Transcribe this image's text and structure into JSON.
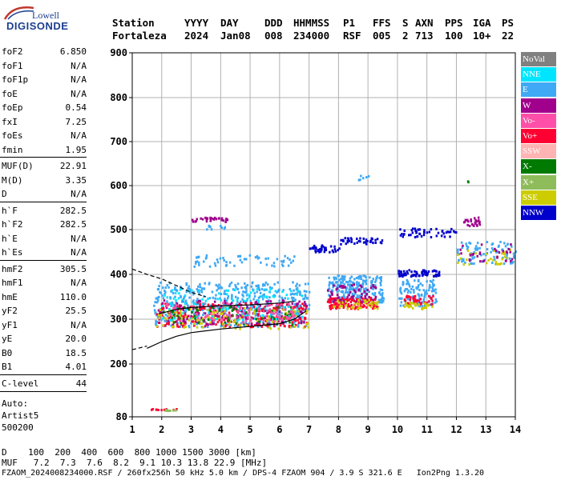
{
  "logo": {
    "top": "Lowell",
    "main": "DIGISONDE"
  },
  "header": {
    "labels": [
      "Station",
      "YYYY",
      "DAY",
      "DDD",
      "HHMMSS",
      "P1",
      "FFS",
      "S",
      "AXN",
      "PPS",
      "IGA",
      "PS"
    ],
    "values": [
      "Fortaleza",
      "2024",
      "Jan08",
      "008",
      "234000",
      "RSF",
      "005",
      "2",
      "713",
      "100",
      "10+",
      "22"
    ]
  },
  "params": {
    "group1": [
      {
        "label": "foF2",
        "value": "6.850"
      },
      {
        "label": "foF1",
        "value": "N/A"
      },
      {
        "label": "foF1p",
        "value": "N/A"
      },
      {
        "label": "foE",
        "value": "N/A"
      },
      {
        "label": "foEp",
        "value": "0.54"
      },
      {
        "label": "fxI",
        "value": "7.25"
      },
      {
        "label": "foEs",
        "value": "N/A"
      },
      {
        "label": "fmin",
        "value": "1.95"
      }
    ],
    "group2": [
      {
        "label": "MUF(D)",
        "value": "22.91"
      },
      {
        "label": "M(D)",
        "value": "3.35"
      },
      {
        "label": "D",
        "value": "N/A"
      }
    ],
    "group3": [
      {
        "label": "h`F",
        "value": "282.5"
      },
      {
        "label": "h`F2",
        "value": "282.5"
      },
      {
        "label": "h`E",
        "value": "N/A"
      },
      {
        "label": "h`Es",
        "value": "N/A"
      }
    ],
    "group4": [
      {
        "label": "hmF2",
        "value": "305.5"
      },
      {
        "label": "hmF1",
        "value": "N/A"
      },
      {
        "label": "hmE",
        "value": "110.0"
      },
      {
        "label": "yF2",
        "value": "25.5"
      },
      {
        "label": "yF1",
        "value": "N/A"
      },
      {
        "label": "yE",
        "value": "20.0"
      },
      {
        "label": "B0",
        "value": "18.5"
      },
      {
        "label": "B1",
        "value": "4.01"
      }
    ],
    "group5": [
      {
        "label": "C-level",
        "value": "44"
      }
    ]
  },
  "auto": [
    "Auto:",
    "Artist5",
    "500200"
  ],
  "legend": [
    {
      "label": "NoVal",
      "color": "#808080"
    },
    {
      "label": "NNE",
      "color": "#00e5ff"
    },
    {
      "label": "E",
      "color": "#3fa9f5"
    },
    {
      "label": "W",
      "color": "#a0008c"
    },
    {
      "label": "Vo-",
      "color": "#ff4fa8"
    },
    {
      "label": "Vo+",
      "color": "#ff0033"
    },
    {
      "label": "SSW",
      "color": "#ffb3b3"
    },
    {
      "label": "X-",
      "color": "#007a00"
    },
    {
      "label": "X+",
      "color": "#8fbc5a"
    },
    {
      "label": "SSE",
      "color": "#cccc00"
    },
    {
      "label": "NNW",
      "color": "#0000cc"
    }
  ],
  "bottom": {
    "d_line": "D    100  200  400  600  800 1000 1500 3000 [km]",
    "muf_line": "MUF   7.2  7.3  7.6  8.2  9.1 10.3 13.8 22.9 [MHz]",
    "file_line": "FZAOM_2024008234000.RSF / 260fx256h 50 kHz 5.0 km / DPS-4 FZAOM 904 / 3.9 S 321.6 E   Ion2Png 1.3.20"
  },
  "chart_data": {
    "type": "scatter",
    "x_ticks": [
      "1",
      "2",
      "3",
      "4",
      "5",
      "6",
      "7",
      "8",
      "9",
      "10",
      "11",
      "12",
      "13",
      "14"
    ],
    "y_ticks": [
      "80",
      "200",
      "300",
      "400",
      "500",
      "600",
      "700",
      "800",
      "900"
    ],
    "xlim": [
      1,
      14
    ],
    "y_tick_values": [
      80,
      200,
      300,
      400,
      500,
      600,
      700,
      800,
      900
    ],
    "grid": true,
    "clusters": [
      {
        "color": "#3fa9f5",
        "x": [
          1.7,
          7.0
        ],
        "y": [
          285,
          385
        ],
        "n": 520
      },
      {
        "color": "#ff0033",
        "x": [
          1.8,
          6.9
        ],
        "y": [
          285,
          340
        ],
        "n": 260
      },
      {
        "color": "#a0008c",
        "x": [
          1.8,
          7.0
        ],
        "y": [
          290,
          345
        ],
        "n": 140
      },
      {
        "color": "#cccc00",
        "x": [
          1.8,
          7.0
        ],
        "y": [
          280,
          330
        ],
        "n": 120
      },
      {
        "color": "#00e5ff",
        "x": [
          2.0,
          6.8
        ],
        "y": [
          300,
          370
        ],
        "n": 110
      },
      {
        "color": "#007a00",
        "x": [
          2.0,
          6.5
        ],
        "y": [
          290,
          330
        ],
        "n": 60
      },
      {
        "color": "#ff4fa8",
        "x": [
          2.0,
          6.5
        ],
        "y": [
          295,
          340
        ],
        "n": 80
      },
      {
        "color": "#3fa9f5",
        "x": [
          7.6,
          9.5
        ],
        "y": [
          340,
          400
        ],
        "n": 220
      },
      {
        "color": "#ff0033",
        "x": [
          7.6,
          9.3
        ],
        "y": [
          325,
          350
        ],
        "n": 120
      },
      {
        "color": "#a0008c",
        "x": [
          7.6,
          9.3
        ],
        "y": [
          340,
          380
        ],
        "n": 60
      },
      {
        "color": "#cccc00",
        "x": [
          7.8,
          9.3
        ],
        "y": [
          325,
          345
        ],
        "n": 40
      },
      {
        "color": "#3fa9f5",
        "x": [
          10.0,
          11.3
        ],
        "y": [
          330,
          390
        ],
        "n": 110
      },
      {
        "color": "#ff0033",
        "x": [
          10.2,
          11.2
        ],
        "y": [
          335,
          355
        ],
        "n": 40
      },
      {
        "color": "#cccc00",
        "x": [
          10.2,
          11.2
        ],
        "y": [
          325,
          340
        ],
        "n": 30
      },
      {
        "color": "#0000cc",
        "x": [
          10.0,
          11.4
        ],
        "y": [
          398,
          412
        ],
        "n": 70
      },
      {
        "color": "#3fa9f5",
        "x": [
          12.0,
          14.0
        ],
        "y": [
          425,
          475
        ],
        "n": 90
      },
      {
        "color": "#cccc00",
        "x": [
          12.0,
          13.8
        ],
        "y": [
          420,
          460
        ],
        "n": 30
      },
      {
        "color": "#a0008c",
        "x": [
          12.1,
          13.9
        ],
        "y": [
          430,
          470
        ],
        "n": 30
      },
      {
        "color": "#0000cc",
        "x": [
          7.0,
          8.0
        ],
        "y": [
          452,
          468
        ],
        "n": 35
      },
      {
        "color": "#0000cc",
        "x": [
          8.0,
          9.5
        ],
        "y": [
          470,
          485
        ],
        "n": 40
      },
      {
        "color": "#0000cc",
        "x": [
          10.0,
          12.0
        ],
        "y": [
          485,
          505
        ],
        "n": 50
      },
      {
        "color": "#a0008c",
        "x": [
          3.0,
          4.2
        ],
        "y": [
          520,
          530
        ],
        "n": 30
      },
      {
        "color": "#a0008c",
        "x": [
          12.2,
          12.8
        ],
        "y": [
          510,
          530
        ],
        "n": 25
      },
      {
        "color": "#3fa9f5",
        "x": [
          3.0,
          6.6
        ],
        "y": [
          420,
          445
        ],
        "n": 60
      },
      {
        "color": "#3fa9f5",
        "x": [
          3.5,
          4.2
        ],
        "y": [
          500,
          512
        ],
        "n": 10
      },
      {
        "color": "#3fa9f5",
        "x": [
          8.5,
          9.0
        ],
        "y": [
          615,
          625
        ],
        "n": 6
      },
      {
        "color": "#007a00",
        "x": [
          12.2,
          12.4
        ],
        "y": [
          610,
          612
        ],
        "n": 2
      },
      {
        "color": "#ff0033",
        "x": [
          1.6,
          2.5
        ],
        "y": [
          98,
          100
        ],
        "n": 10
      },
      {
        "color": "#8fbc5a",
        "x": [
          2.0,
          2.5
        ],
        "y": [
          96,
          99
        ],
        "n": 10
      }
    ],
    "curves": [
      {
        "style": "solid",
        "color": "#000000",
        "points": [
          [
            1.5,
            235
          ],
          [
            2.0,
            250
          ],
          [
            2.5,
            262
          ],
          [
            3.0,
            270
          ],
          [
            4.0,
            278
          ],
          [
            5.0,
            284
          ],
          [
            6.0,
            290
          ],
          [
            6.5,
            300
          ],
          [
            6.9,
            318
          ]
        ]
      },
      {
        "style": "dashed",
        "color": "#000000",
        "points": [
          [
            1.0,
            232
          ],
          [
            1.5,
            240
          ]
        ]
      },
      {
        "style": "dashed",
        "color": "#000000",
        "points": [
          [
            1.0,
            412
          ],
          [
            1.5,
            400
          ],
          [
            2.0,
            390
          ],
          [
            2.5,
            375
          ],
          [
            3.0,
            360
          ],
          [
            3.5,
            350
          ]
        ]
      },
      {
        "style": "solid",
        "color": "#000000",
        "points": [
          [
            1.9,
            312
          ],
          [
            2.5,
            322
          ],
          [
            3.0,
            326
          ],
          [
            4.0,
            330
          ],
          [
            5.0,
            332
          ],
          [
            6.0,
            336
          ],
          [
            6.5,
            340
          ]
        ]
      }
    ]
  }
}
